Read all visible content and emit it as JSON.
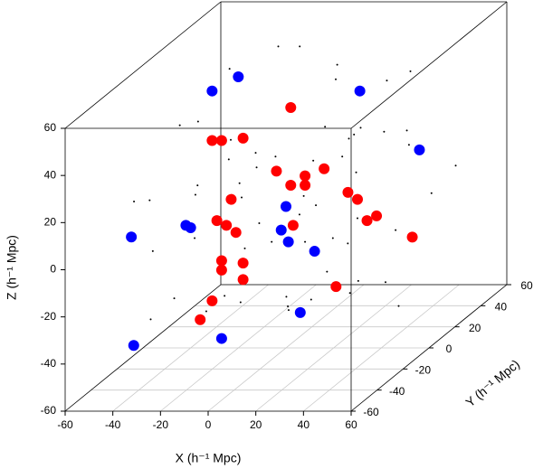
{
  "chart_data": {
    "type": "scatter3d",
    "xlabel": "X (h⁻¹ Mpc)",
    "ylabel": "Y (h⁻¹ Mpc)",
    "zlabel": "Z (h⁻¹ Mpc)",
    "xlim": [
      -60,
      60
    ],
    "ylim": [
      -60,
      60
    ],
    "zlim": [
      -60,
      60
    ],
    "xticks": [
      -60,
      -40,
      -20,
      0,
      20,
      40,
      60
    ],
    "yticks": [
      -60,
      -40,
      -20,
      0,
      20,
      40,
      60
    ],
    "zticks": [
      -60,
      -40,
      -20,
      0,
      20,
      40,
      60
    ],
    "grid": true,
    "series": [
      {
        "color": "#000000",
        "size": 1,
        "x": [
          -50,
          -45,
          -40,
          -38,
          -35,
          -30,
          -28,
          -25,
          -22,
          -20,
          -18,
          -15,
          -12,
          -10,
          -8,
          -5,
          -3,
          0,
          2,
          5,
          8,
          10,
          12,
          15,
          18,
          20,
          22,
          25,
          28,
          30,
          33,
          35,
          38,
          40,
          42,
          45,
          48,
          50,
          -42,
          -33,
          -26,
          -14,
          -6,
          4,
          14,
          24,
          34,
          44,
          -48,
          -36,
          -24,
          -16,
          -4,
          6,
          16,
          26,
          36,
          46,
          -30,
          -10,
          10,
          30
        ],
        "y": [
          10,
          -20,
          30,
          0,
          -40,
          20,
          -10,
          40,
          -30,
          5,
          25,
          -15,
          35,
          -5,
          15,
          -25,
          45,
          -35,
          10,
          -45,
          0,
          20,
          -20,
          30,
          -10,
          40,
          -30,
          50,
          -50,
          0,
          15,
          -15,
          25,
          -25,
          35,
          -35,
          5,
          -5,
          -40,
          40,
          -20,
          20,
          0,
          -30,
          30,
          10,
          -10,
          50,
          20,
          -20,
          0,
          40,
          -40,
          10,
          -10,
          30,
          -30,
          0,
          -50,
          50,
          25,
          -25
        ],
        "z": [
          30,
          -10,
          45,
          5,
          -30,
          20,
          -40,
          50,
          0,
          -20,
          10,
          35,
          -5,
          25,
          -45,
          15,
          40,
          -25,
          0,
          30,
          -15,
          45,
          -35,
          20,
          5,
          -50,
          10,
          35,
          -20,
          -5,
          25,
          -30,
          15,
          40,
          -10,
          0,
          30,
          -40,
          20,
          -25,
          45,
          5,
          -15,
          30,
          -45,
          10,
          35,
          -5,
          0,
          -30,
          20,
          50,
          -20,
          15,
          -35,
          40,
          0,
          -10,
          25,
          -50,
          10,
          45
        ]
      },
      {
        "color": "#ff0000",
        "size": 6,
        "x": [
          -31,
          -27,
          -18,
          2,
          -4,
          2,
          8,
          8,
          16,
          26,
          30,
          34,
          38,
          53,
          -23,
          -29,
          -25,
          -21,
          3,
          -27,
          -27,
          -18,
          -18,
          21,
          -31,
          -36
        ],
        "y": [
          0,
          0,
          0,
          0,
          0,
          0,
          0,
          0,
          0,
          0,
          0,
          0,
          0,
          0,
          0,
          0,
          0,
          0,
          0,
          0,
          0,
          0,
          0,
          0,
          0,
          0
        ],
        "z": [
          28,
          28,
          29,
          42,
          15,
          9,
          13,
          9,
          16,
          6,
          3,
          -6,
          -4,
          -13,
          3,
          -6,
          -8,
          -11,
          -8,
          -23,
          -27,
          -24,
          -31,
          -34,
          -40,
          -48
        ]
      },
      {
        "color": "#0000ff",
        "size": 6,
        "x": [
          -31,
          -20,
          31,
          56,
          0,
          -2,
          1,
          12,
          -42,
          -40,
          -54,
          6,
          -27,
          -53
        ],
        "y": [
          0,
          0,
          0,
          0,
          0,
          0,
          0,
          0,
          0,
          0,
          -20,
          0,
          0,
          -20
        ],
        "z": [
          49,
          55,
          49,
          24,
          0,
          -10,
          -15,
          -19,
          -8,
          -9,
          -4,
          -45,
          -56,
          -50
        ]
      }
    ]
  }
}
